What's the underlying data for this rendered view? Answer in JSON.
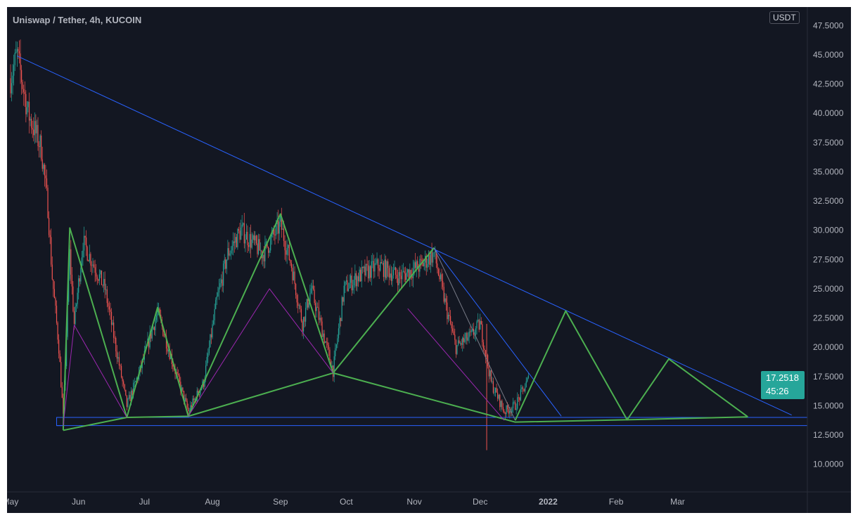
{
  "header": {
    "title": "Uniswap / Tether, 4h, KUCOIN",
    "currency": "USDT"
  },
  "last_price": {
    "value": "17.2518",
    "countdown": "45:26"
  },
  "colors": {
    "background": "#131722",
    "up": "#26a69a",
    "down": "#ef5350",
    "trendline": "#2962ff",
    "pattern": "#4caf50",
    "inner": "#9c27b0",
    "neutral": "#787b86"
  },
  "chart_data": {
    "type": "candlestick",
    "title": "Uniswap / Tether, 4h, KUCOIN",
    "ylim": [
      7.5,
      48.5
    ],
    "xlim": [
      "2021-05-01",
      "2022-05-08"
    ],
    "y_ticks": [
      "47.5000",
      "45.0000",
      "42.5000",
      "40.0000",
      "37.5000",
      "35.0000",
      "32.5000",
      "30.0000",
      "27.5000",
      "25.0000",
      "22.5000",
      "20.0000",
      "17.5000",
      "15.0000",
      "12.5000",
      "10.0000"
    ],
    "x_ticks": [
      {
        "label": "May",
        "date": "2021-05-01"
      },
      {
        "label": "Jun",
        "date": "2021-06-01"
      },
      {
        "label": "Jul",
        "date": "2021-07-01"
      },
      {
        "label": "Aug",
        "date": "2021-08-01"
      },
      {
        "label": "Sep",
        "date": "2021-09-01"
      },
      {
        "label": "Oct",
        "date": "2021-10-01"
      },
      {
        "label": "Nov",
        "date": "2021-11-01"
      },
      {
        "label": "Dec",
        "date": "2021-12-01"
      },
      {
        "label": "2022",
        "date": "2022-01-01"
      },
      {
        "label": "Feb",
        "date": "2022-02-01"
      },
      {
        "label": "Mar",
        "date": "2022-03-01"
      }
    ],
    "price_path": [
      [
        "2021-05-01",
        43
      ],
      [
        "2021-05-04",
        45
      ],
      [
        "2021-05-09",
        40
      ],
      [
        "2021-05-15",
        37
      ],
      [
        "2021-05-18",
        32
      ],
      [
        "2021-05-20",
        26
      ],
      [
        "2021-05-23",
        20
      ],
      [
        "2021-05-25",
        14
      ],
      [
        "2021-05-28",
        28
      ],
      [
        "2021-05-30",
        22
      ],
      [
        "2021-06-03",
        29
      ],
      [
        "2021-06-13",
        25
      ],
      [
        "2021-06-23",
        15
      ],
      [
        "2021-06-29",
        18
      ],
      [
        "2021-07-07",
        23
      ],
      [
        "2021-07-15",
        18
      ],
      [
        "2021-07-21",
        14.5
      ],
      [
        "2021-07-28",
        17
      ],
      [
        "2021-08-03",
        24
      ],
      [
        "2021-08-08",
        28
      ],
      [
        "2021-08-14",
        30
      ],
      [
        "2021-08-24",
        28
      ],
      [
        "2021-09-01",
        30.5
      ],
      [
        "2021-09-06",
        27
      ],
      [
        "2021-09-11",
        22
      ],
      [
        "2021-09-15",
        25
      ],
      [
        "2021-09-25",
        18
      ],
      [
        "2021-09-30",
        25
      ],
      [
        "2021-10-06",
        26
      ],
      [
        "2021-10-16",
        27
      ],
      [
        "2021-10-25",
        26
      ],
      [
        "2021-11-04",
        27
      ],
      [
        "2021-11-10",
        28
      ],
      [
        "2021-11-16",
        23
      ],
      [
        "2021-11-20",
        20
      ],
      [
        "2021-11-27",
        21
      ],
      [
        "2021-12-01",
        22
      ],
      [
        "2021-12-06",
        17
      ],
      [
        "2021-12-12",
        14.5
      ],
      [
        "2021-12-17",
        15
      ],
      [
        "2021-12-23",
        17.25
      ]
    ],
    "drawings": [
      {
        "kind": "trendline",
        "color": "trendline",
        "points": [
          [
            "2021-05-04",
            44.9
          ],
          [
            "2022-04-22",
            14.2
          ]
        ]
      },
      {
        "kind": "trendline",
        "color": "trendline",
        "points": [
          [
            "2021-11-10",
            28.5
          ],
          [
            "2022-01-07",
            14.1
          ]
        ]
      },
      {
        "kind": "horizontal",
        "color": "trendline",
        "price": 14.0,
        "from": "2021-05-22"
      },
      {
        "kind": "horizontal",
        "color": "trendline",
        "price": 13.3,
        "from": "2021-05-22"
      },
      {
        "kind": "box",
        "color": "trendline",
        "points": [
          [
            "2021-05-22",
            14.0
          ],
          [
            "2021-05-25",
            13.3
          ]
        ]
      },
      {
        "kind": "zigzag",
        "color": "pattern",
        "points": [
          [
            "2021-05-25",
            12.9
          ],
          [
            "2021-05-28",
            30.2
          ],
          [
            "2021-06-23",
            14.0
          ],
          [
            "2021-07-07",
            23.4
          ],
          [
            "2021-07-21",
            14.1
          ],
          [
            "2021-09-01",
            31.4
          ],
          [
            "2021-09-25",
            17.8
          ],
          [
            "2021-11-10",
            28.5
          ]
        ]
      },
      {
        "kind": "zigzag",
        "color": "neutral",
        "points": [
          [
            "2021-11-10",
            28.5
          ],
          [
            "2021-12-17",
            13.75
          ]
        ]
      },
      {
        "kind": "zigzag",
        "color": "pattern",
        "points": [
          [
            "2021-12-17",
            13.75
          ],
          [
            "2022-01-09",
            23.1
          ],
          [
            "2022-02-06",
            13.8
          ],
          [
            "2022-02-25",
            19.0
          ],
          [
            "2022-04-02",
            14.05
          ]
        ]
      },
      {
        "kind": "zigzag",
        "color": "pattern",
        "points": [
          [
            "2021-05-25",
            12.9
          ],
          [
            "2021-06-23",
            14.0
          ],
          [
            "2021-07-21",
            14.1
          ],
          [
            "2021-09-25",
            17.8
          ],
          [
            "2021-12-17",
            13.6
          ],
          [
            "2022-02-06",
            13.8
          ],
          [
            "2022-04-02",
            14.05
          ]
        ]
      },
      {
        "kind": "zigzag",
        "color": "inner",
        "points": [
          [
            "2021-05-25",
            13.3
          ],
          [
            "2021-05-30",
            21.9
          ],
          [
            "2021-06-23",
            14.0
          ]
        ]
      },
      {
        "kind": "zigzag",
        "color": "inner",
        "points": [
          [
            "2021-07-21",
            14.1
          ],
          [
            "2021-08-27",
            25.0
          ],
          [
            "2021-09-25",
            17.8
          ]
        ]
      },
      {
        "kind": "zigzag",
        "color": "inner",
        "points": [
          [
            "2021-10-29",
            23.3
          ],
          [
            "2021-12-12",
            13.75
          ]
        ]
      }
    ]
  }
}
